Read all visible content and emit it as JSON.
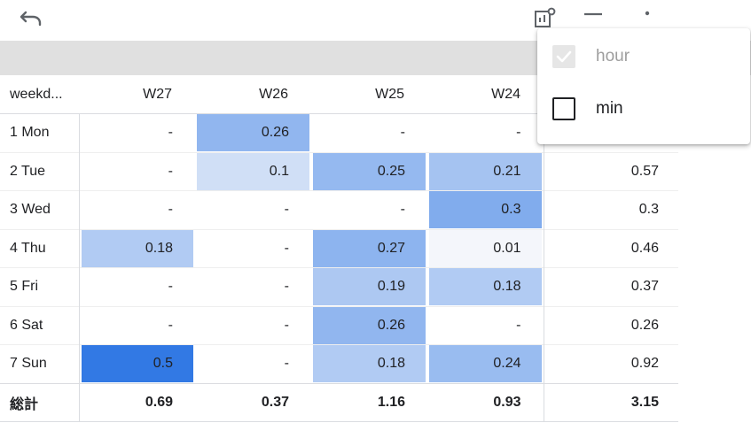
{
  "toolbar": {
    "undo_icon": "undo-icon",
    "chart_settings_icon": "chart-settings-icon",
    "menu_icon": "menu-lines-icon",
    "more_icon": "more-vert-icon"
  },
  "table": {
    "headers": {
      "label": "weekd...",
      "weeks": [
        "W27",
        "W26",
        "W25",
        "W24"
      ]
    },
    "rows": [
      {
        "label": "1 Mon",
        "cells": [
          "-",
          "0.26",
          "-",
          "-"
        ],
        "total": ""
      },
      {
        "label": "2 Tue",
        "cells": [
          "-",
          "0.1",
          "0.25",
          "0.21"
        ],
        "total": "0.57"
      },
      {
        "label": "3 Wed",
        "cells": [
          "-",
          "-",
          "-",
          "0.3"
        ],
        "total": "0.3"
      },
      {
        "label": "4 Thu",
        "cells": [
          "0.18",
          "-",
          "0.27",
          "0.01"
        ],
        "total": "0.46"
      },
      {
        "label": "5 Fri",
        "cells": [
          "-",
          "-",
          "0.19",
          "0.18"
        ],
        "total": "0.37"
      },
      {
        "label": "6 Sat",
        "cells": [
          "-",
          "-",
          "0.26",
          "-"
        ],
        "total": "0.26"
      },
      {
        "label": "7 Sun",
        "cells": [
          "0.5",
          "-",
          "0.18",
          "0.24"
        ],
        "total": "0.92"
      }
    ],
    "summary": {
      "label": "総計",
      "cells": [
        "0.69",
        "0.37",
        "1.16",
        "0.93"
      ],
      "total": "3.15"
    }
  },
  "colors": {
    "heat_max": "#3279e4",
    "heat_min": "#f8f9fb",
    "grey_band": "#e0e0e0"
  },
  "menu": {
    "items": [
      {
        "label": "hour",
        "checked": true,
        "disabled": true
      },
      {
        "label": "min",
        "checked": false,
        "disabled": false
      }
    ]
  }
}
